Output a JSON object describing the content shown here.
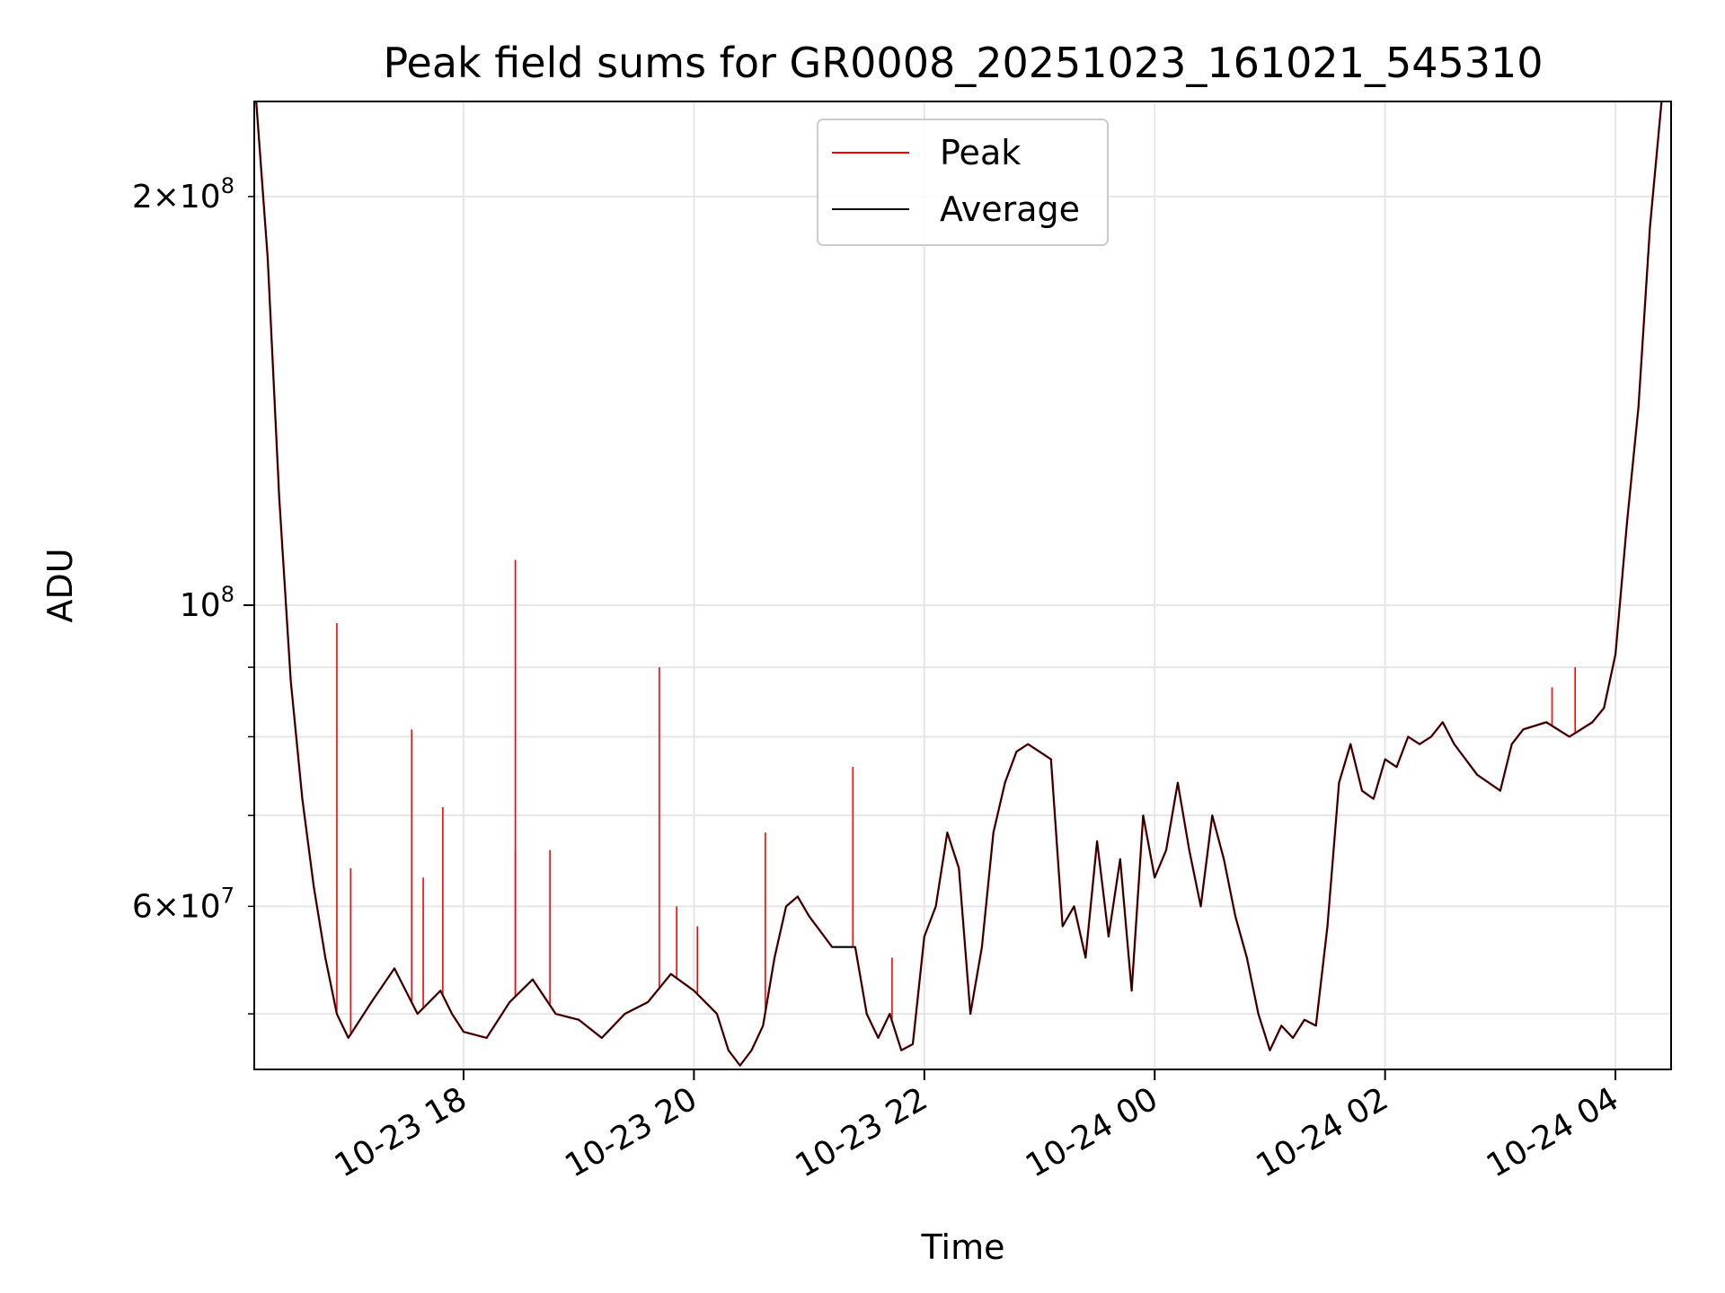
{
  "chart_data": {
    "type": "line",
    "title": "Peak field sums for GR0008_20251023_161021_545310",
    "xlabel": "Time",
    "ylabel": "ADU",
    "xlim": [
      16.183,
      28.483
    ],
    "ylim": [
      45500000,
      235000000
    ],
    "yscale": "log",
    "grid": true,
    "legend_position": "top-center",
    "x_tick_values": [
      18,
      20,
      22,
      24,
      26,
      28
    ],
    "x_tick_labels": [
      "10-23 18",
      "10-23 20",
      "10-23 22",
      "10-24 00",
      "10-24 02",
      "10-24 04"
    ],
    "y_major_ticks": [
      {
        "value": 100000000,
        "base": "10",
        "exp": "8"
      }
    ],
    "y_minor_ticks": [
      {
        "value": 60000000,
        "mant": "6",
        "exp": "7"
      },
      {
        "value": 200000000,
        "mant": "2",
        "exp": "8"
      }
    ],
    "y_minor_unlabeled": [
      50000000,
      70000000,
      80000000,
      90000000
    ],
    "series": [
      {
        "name": "Peak",
        "color": "#ff0000",
        "spikes": [
          {
            "x": 16.9,
            "y": 97000000
          },
          {
            "x": 17.02,
            "y": 64000000
          },
          {
            "x": 17.55,
            "y": 81000000
          },
          {
            "x": 17.65,
            "y": 63000000
          },
          {
            "x": 17.82,
            "y": 71000000
          },
          {
            "x": 18.45,
            "y": 108000000
          },
          {
            "x": 18.45,
            "y": 66000000
          },
          {
            "x": 18.75,
            "y": 66000000
          },
          {
            "x": 19.7,
            "y": 90000000
          },
          {
            "x": 19.85,
            "y": 60000000
          },
          {
            "x": 20.03,
            "y": 58000000
          },
          {
            "x": 20.62,
            "y": 68000000
          },
          {
            "x": 21.38,
            "y": 76000000
          },
          {
            "x": 21.72,
            "y": 55000000
          },
          {
            "x": 27.65,
            "y": 90000000
          },
          {
            "x": 27.45,
            "y": 87000000
          }
        ]
      },
      {
        "name": "Average",
        "color": "#000000",
        "x": [
          16.2,
          16.3,
          16.4,
          16.5,
          16.6,
          16.7,
          16.8,
          16.9,
          17.0,
          17.2,
          17.4,
          17.6,
          17.8,
          17.9,
          18.0,
          18.2,
          18.4,
          18.6,
          18.8,
          19.0,
          19.2,
          19.4,
          19.6,
          19.8,
          20.0,
          20.2,
          20.3,
          20.4,
          20.5,
          20.6,
          20.7,
          20.8,
          20.9,
          21.0,
          21.2,
          21.4,
          21.5,
          21.6,
          21.7,
          21.8,
          21.9,
          22.0,
          22.1,
          22.2,
          22.3,
          22.4,
          22.5,
          22.6,
          22.7,
          22.8,
          22.9,
          23.0,
          23.1,
          23.2,
          23.3,
          23.4,
          23.5,
          23.6,
          23.7,
          23.8,
          23.9,
          24.0,
          24.1,
          24.2,
          24.3,
          24.4,
          24.5,
          24.6,
          24.7,
          24.8,
          24.9,
          25.0,
          25.1,
          25.2,
          25.3,
          25.4,
          25.5,
          25.6,
          25.7,
          25.8,
          25.9,
          26.0,
          26.1,
          26.2,
          26.3,
          26.4,
          26.5,
          26.6,
          26.8,
          27.0,
          27.1,
          27.2,
          27.4,
          27.6,
          27.8,
          27.9,
          28.0,
          28.1,
          28.2,
          28.3,
          28.4
        ],
        "values": [
          235000000,
          180000000,
          120000000,
          88000000,
          72000000,
          62000000,
          55000000,
          50000000,
          48000000,
          51000000,
          54000000,
          50000000,
          52000000,
          50000000,
          48500000,
          48000000,
          51000000,
          53000000,
          50000000,
          49500000,
          48000000,
          50000000,
          51000000,
          53500000,
          52000000,
          50000000,
          47000000,
          45800000,
          47000000,
          49000000,
          55000000,
          60000000,
          61000000,
          59000000,
          56000000,
          56000000,
          50000000,
          48000000,
          50000000,
          47000000,
          47500000,
          57000000,
          60000000,
          68000000,
          64000000,
          50000000,
          56000000,
          68000000,
          74000000,
          78000000,
          79000000,
          78000000,
          77000000,
          58000000,
          60000000,
          55000000,
          67000000,
          57000000,
          65000000,
          52000000,
          70000000,
          63000000,
          66000000,
          74000000,
          66000000,
          60000000,
          70000000,
          65000000,
          59000000,
          55000000,
          50000000,
          47000000,
          49000000,
          48000000,
          49500000,
          49000000,
          58000000,
          74000000,
          79000000,
          73000000,
          72000000,
          77000000,
          76000000,
          80000000,
          79000000,
          80000000,
          82000000,
          79000000,
          75000000,
          73000000,
          79000000,
          81000000,
          82000000,
          80000000,
          82000000,
          84000000,
          92000000,
          115000000,
          140000000,
          190000000,
          235000000
        ]
      }
    ]
  }
}
